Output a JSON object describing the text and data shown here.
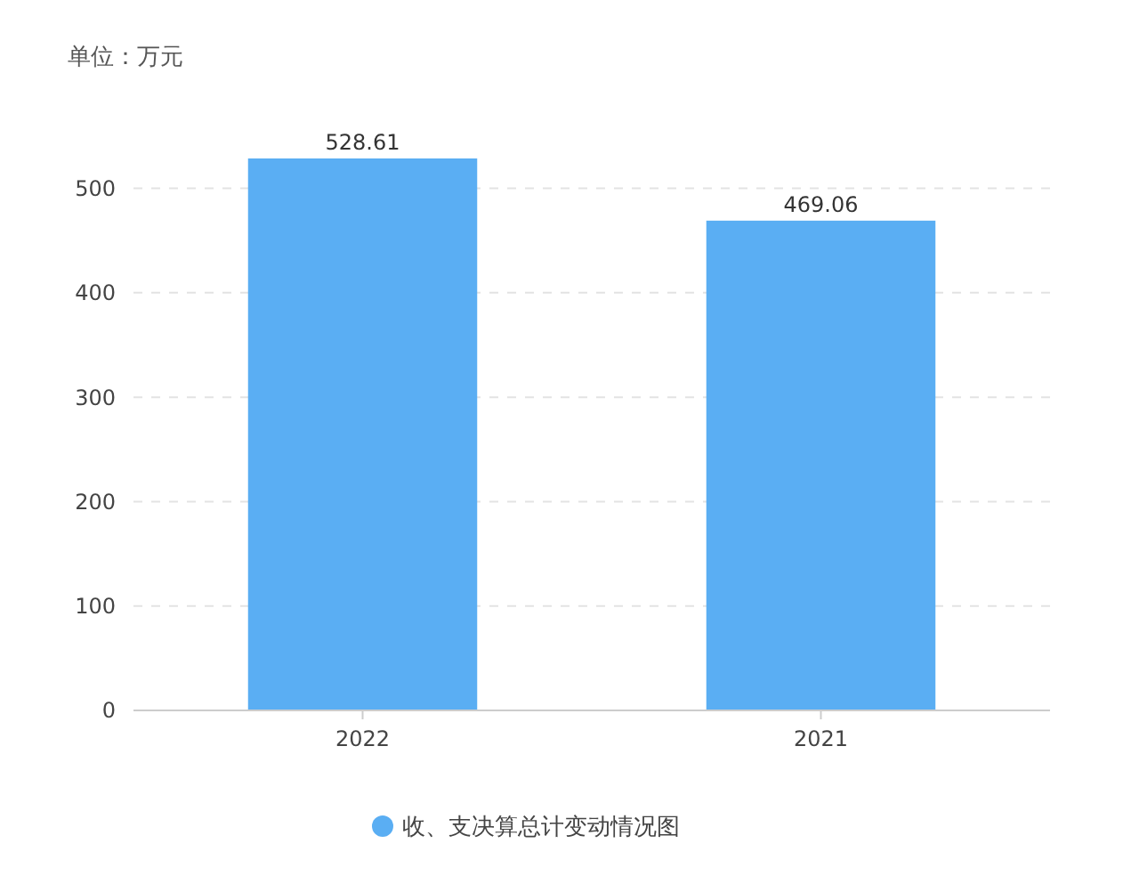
{
  "chart_data": {
    "type": "bar",
    "ylabel": "单位：万元",
    "categories": [
      "2022",
      "2021"
    ],
    "series": [
      {
        "name": "收、支决算总计变动情况图",
        "color": "#5aaef3",
        "values": [
          528.61,
          469.06
        ]
      }
    ],
    "ylim": [
      0,
      528.61
    ],
    "yticks": [
      0,
      100,
      200,
      300,
      400,
      500
    ],
    "grid": "y",
    "legend": "bottom",
    "data_labels": true
  }
}
